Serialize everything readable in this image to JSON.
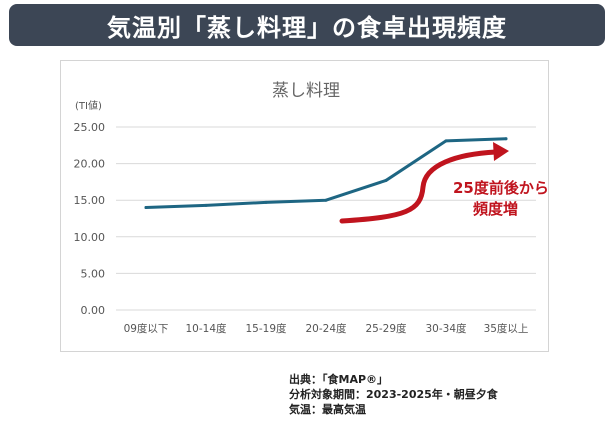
{
  "banner": {
    "title": "気温別「蒸し料理」の食卓出現頻度"
  },
  "chart_data": {
    "type": "line",
    "title": "蒸し料理",
    "ylabel": "(TI値)",
    "xlabel": "",
    "categories": [
      "09度以下",
      "10-14度",
      "15-19度",
      "20-24度",
      "25-29度",
      "30-34度",
      "35度以上"
    ],
    "series": [
      {
        "values": [
          14.0,
          14.3,
          14.7,
          15.0,
          17.7,
          23.1,
          23.4
        ],
        "color": "#1e6683"
      }
    ],
    "ylim": [
      0,
      25
    ],
    "yticks": [
      "0.00",
      "5.00",
      "10.00",
      "15.00",
      "20.00",
      "25.00"
    ],
    "grid": true,
    "legend": "none",
    "annotation": {
      "lines": [
        "25度前後から",
        "頻度増"
      ],
      "color": "#c0141e"
    }
  },
  "source": {
    "lines": [
      "出典：「食MAP®」",
      "分析対象期間：2023-2025年・朝昼夕食",
      "気温：最高気温"
    ]
  }
}
